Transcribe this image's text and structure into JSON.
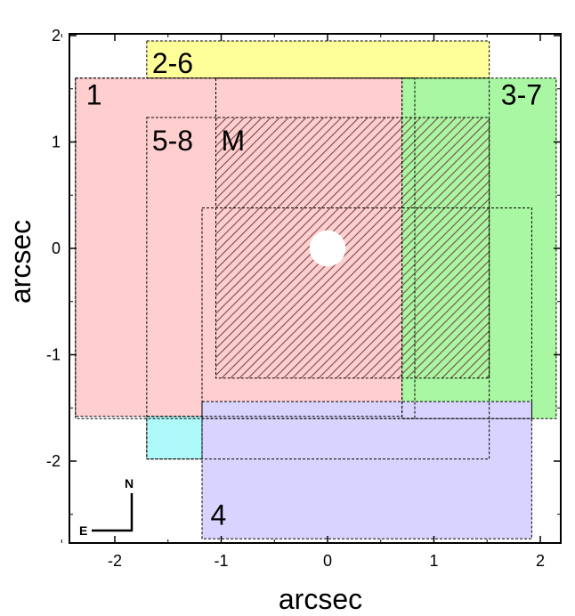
{
  "chart_data": {
    "type": "diagram",
    "xlabel": "arcsec",
    "ylabel": "arcsec",
    "xlim": [
      -2.4,
      2.2
    ],
    "ylim": [
      -2.75,
      2.0
    ],
    "x_ticks": [
      -2,
      -1,
      0,
      1,
      2
    ],
    "y_ticks": [
      2,
      1,
      0,
      -1,
      -2
    ],
    "compass": {
      "north": "N",
      "east": "E"
    },
    "regions": [
      {
        "label": "1",
        "x0": -2.37,
        "x1": 0.7,
        "y0": -1.58,
        "y1": 1.6,
        "color": "#ffcece",
        "label_x": -2.27,
        "label_y": 1.35
      },
      {
        "label": "2-6",
        "x0": -1.7,
        "x1": 1.52,
        "y0": 1.6,
        "y1": 1.95,
        "color": "#ffff99",
        "label_x": -1.65,
        "label_y": 1.65
      },
      {
        "label": "3-7",
        "x0": 0.7,
        "x1": 2.15,
        "y0": -1.6,
        "y1": 1.6,
        "color": "#aaf7a3",
        "label_x": 1.63,
        "label_y": 1.35
      },
      {
        "label": "4",
        "x0": -1.18,
        "x1": 1.92,
        "y0": -2.73,
        "y1": -1.44,
        "color": "#d8d4ff",
        "label_x": -1.1,
        "label_y": -2.6
      },
      {
        "label": "",
        "x0": -1.7,
        "x1": -1.18,
        "y0": -1.98,
        "y1": -1.58,
        "color": "#aefafa",
        "label_x": 0,
        "label_y": 0
      }
    ],
    "outlines": [
      {
        "label": "5-8",
        "x0": -1.7,
        "x1": 1.52,
        "y0": -1.98,
        "y1": 1.23,
        "label_x": -1.65,
        "label_y": 0.92
      },
      {
        "label": "M",
        "x0": -1.05,
        "x1": 1.52,
        "y0": -1.22,
        "y1": 1.6,
        "label_x": -1.0,
        "label_y": 0.92
      },
      {
        "label": "",
        "x0": -2.37,
        "x1": 0.82,
        "y0": -1.6,
        "y1": 1.6,
        "label_x": 0,
        "label_y": 0
      },
      {
        "label": "",
        "x0": -1.18,
        "x1": 1.92,
        "y0": -1.6,
        "y1": 0.38,
        "label_x": 0,
        "label_y": 0
      }
    ],
    "hatched_area": {
      "x0": -1.05,
      "x1": 1.52,
      "y0": -1.22,
      "y1": 1.23
    },
    "hole": {
      "x": 0.0,
      "y": 0.0,
      "r": 0.17
    }
  }
}
